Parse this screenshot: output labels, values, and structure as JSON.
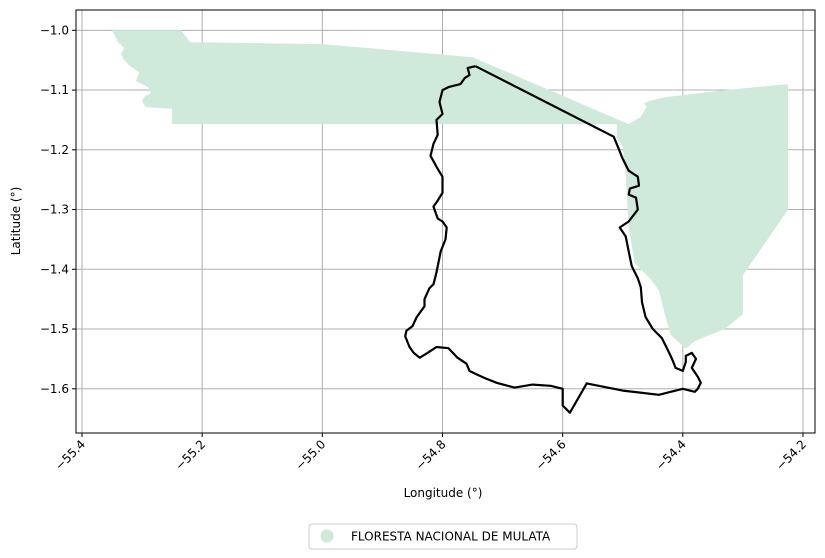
{
  "chart_data": {
    "type": "map",
    "xlabel": "Longitude (°)",
    "ylabel": "Latitude (°)",
    "xlim": [
      -55.41,
      -54.18
    ],
    "ylim": [
      -1.674,
      -0.966
    ],
    "x_ticks": [
      -55.4,
      -55.2,
      -55.0,
      -54.8,
      -54.6,
      -54.4,
      -54.2
    ],
    "x_tick_labels": [
      "−55.4",
      "−55.2",
      "−55.0",
      "−54.8",
      "−54.6",
      "−54.4",
      "−54.2"
    ],
    "y_ticks": [
      -1.0,
      -1.1,
      -1.2,
      -1.3,
      -1.4,
      -1.5,
      -1.6
    ],
    "y_tick_labels": [
      "−1.0",
      "−1.1",
      "−1.2",
      "−1.3",
      "−1.4",
      "−1.5",
      "−1.6"
    ],
    "grid": true,
    "legend_position": "bottom-center",
    "colors": {
      "forest_fill": "#cfeadb",
      "outline": "#000000",
      "grid": "#b0b0b0"
    },
    "layers": [
      {
        "name": "FLORESTA NACIONAL DE MULATA",
        "kind": "polygon",
        "in_legend": true,
        "coords": [
          [
            -55.35,
            -1.0
          ],
          [
            -55.235,
            -1.0
          ],
          [
            -55.22,
            -1.02
          ],
          [
            -55.0,
            -1.023
          ],
          [
            -54.75,
            -1.045
          ],
          [
            -54.49,
            -1.157
          ],
          [
            -54.47,
            -1.145
          ],
          [
            -54.46,
            -1.128
          ],
          [
            -54.465,
            -1.122
          ],
          [
            -54.455,
            -1.118
          ],
          [
            -54.43,
            -1.112
          ],
          [
            -54.33,
            -1.1
          ],
          [
            -54.225,
            -1.09
          ],
          [
            -54.225,
            -1.3
          ],
          [
            -54.3,
            -1.41
          ],
          [
            -54.3,
            -1.475
          ],
          [
            -54.33,
            -1.5
          ],
          [
            -54.38,
            -1.52
          ],
          [
            -54.395,
            -1.533
          ],
          [
            -54.42,
            -1.51
          ],
          [
            -54.43,
            -1.475
          ],
          [
            -54.44,
            -1.435
          ],
          [
            -54.455,
            -1.415
          ],
          [
            -54.48,
            -1.39
          ],
          [
            -54.49,
            -1.33
          ],
          [
            -54.495,
            -1.24
          ],
          [
            -54.5,
            -1.195
          ],
          [
            -54.51,
            -1.18
          ],
          [
            -54.51,
            -1.157
          ],
          [
            -55.25,
            -1.157
          ],
          [
            -55.25,
            -1.131
          ],
          [
            -55.275,
            -1.13
          ],
          [
            -55.295,
            -1.128
          ],
          [
            -55.3,
            -1.118
          ],
          [
            -55.295,
            -1.11
          ],
          [
            -55.285,
            -1.105
          ],
          [
            -55.29,
            -1.095
          ],
          [
            -55.31,
            -1.085
          ],
          [
            -55.305,
            -1.07
          ],
          [
            -55.32,
            -1.06
          ],
          [
            -55.33,
            -1.05
          ],
          [
            -55.335,
            -1.04
          ],
          [
            -55.33,
            -1.03
          ],
          [
            -55.34,
            -1.02
          ],
          [
            -55.35,
            -1.0
          ]
        ]
      },
      {
        "name": "boundary outline",
        "kind": "outline",
        "in_legend": false,
        "coords": [
          [
            -54.745,
            -1.06
          ],
          [
            -54.515,
            -1.178
          ],
          [
            -54.508,
            -1.195
          ],
          [
            -54.5,
            -1.215
          ],
          [
            -54.49,
            -1.235
          ],
          [
            -54.475,
            -1.245
          ],
          [
            -54.473,
            -1.26
          ],
          [
            -54.488,
            -1.265
          ],
          [
            -54.49,
            -1.275
          ],
          [
            -54.478,
            -1.28
          ],
          [
            -54.475,
            -1.3
          ],
          [
            -54.49,
            -1.32
          ],
          [
            -54.505,
            -1.33
          ],
          [
            -54.495,
            -1.345
          ],
          [
            -54.49,
            -1.37
          ],
          [
            -54.485,
            -1.395
          ],
          [
            -54.475,
            -1.415
          ],
          [
            -54.47,
            -1.43
          ],
          [
            -54.468,
            -1.455
          ],
          [
            -54.462,
            -1.48
          ],
          [
            -54.45,
            -1.5
          ],
          [
            -54.435,
            -1.515
          ],
          [
            -54.425,
            -1.535
          ],
          [
            -54.418,
            -1.55
          ],
          [
            -54.412,
            -1.565
          ],
          [
            -54.4,
            -1.57
          ],
          [
            -54.395,
            -1.555
          ],
          [
            -54.395,
            -1.545
          ],
          [
            -54.385,
            -1.54
          ],
          [
            -54.378,
            -1.55
          ],
          [
            -54.385,
            -1.565
          ],
          [
            -54.375,
            -1.58
          ],
          [
            -54.37,
            -1.59
          ],
          [
            -54.375,
            -1.6
          ],
          [
            -54.38,
            -1.605
          ],
          [
            -54.4,
            -1.6
          ],
          [
            -54.44,
            -1.61
          ],
          [
            -54.5,
            -1.603
          ],
          [
            -54.56,
            -1.591
          ],
          [
            -54.588,
            -1.64
          ],
          [
            -54.6,
            -1.628
          ],
          [
            -54.6,
            -1.6
          ],
          [
            -54.62,
            -1.595
          ],
          [
            -54.65,
            -1.593
          ],
          [
            -54.68,
            -1.598
          ],
          [
            -54.71,
            -1.59
          ],
          [
            -54.73,
            -1.582
          ],
          [
            -54.745,
            -1.575
          ],
          [
            -54.755,
            -1.57
          ],
          [
            -54.76,
            -1.558
          ],
          [
            -54.775,
            -1.548
          ],
          [
            -54.79,
            -1.532
          ],
          [
            -54.81,
            -1.53
          ],
          [
            -54.825,
            -1.54
          ],
          [
            -54.838,
            -1.548
          ],
          [
            -54.848,
            -1.54
          ],
          [
            -54.855,
            -1.53
          ],
          [
            -54.862,
            -1.512
          ],
          [
            -54.86,
            -1.503
          ],
          [
            -54.85,
            -1.495
          ],
          [
            -54.843,
            -1.48
          ],
          [
            -54.83,
            -1.462
          ],
          [
            -54.83,
            -1.45
          ],
          [
            -54.822,
            -1.432
          ],
          [
            -54.815,
            -1.425
          ],
          [
            -54.81,
            -1.405
          ],
          [
            -54.803,
            -1.37
          ],
          [
            -54.795,
            -1.35
          ],
          [
            -54.793,
            -1.33
          ],
          [
            -54.8,
            -1.32
          ],
          [
            -54.808,
            -1.315
          ],
          [
            -54.815,
            -1.295
          ],
          [
            -54.808,
            -1.285
          ],
          [
            -54.8,
            -1.272
          ],
          [
            -54.8,
            -1.245
          ],
          [
            -54.808,
            -1.232
          ],
          [
            -54.82,
            -1.21
          ],
          [
            -54.815,
            -1.19
          ],
          [
            -54.808,
            -1.175
          ],
          [
            -54.81,
            -1.15
          ],
          [
            -54.8,
            -1.14
          ],
          [
            -54.805,
            -1.12
          ],
          [
            -54.8,
            -1.1
          ],
          [
            -54.79,
            -1.095
          ],
          [
            -54.77,
            -1.09
          ],
          [
            -54.763,
            -1.08
          ],
          [
            -54.755,
            -1.075
          ],
          [
            -54.758,
            -1.063
          ],
          [
            -54.745,
            -1.06
          ]
        ]
      }
    ]
  }
}
